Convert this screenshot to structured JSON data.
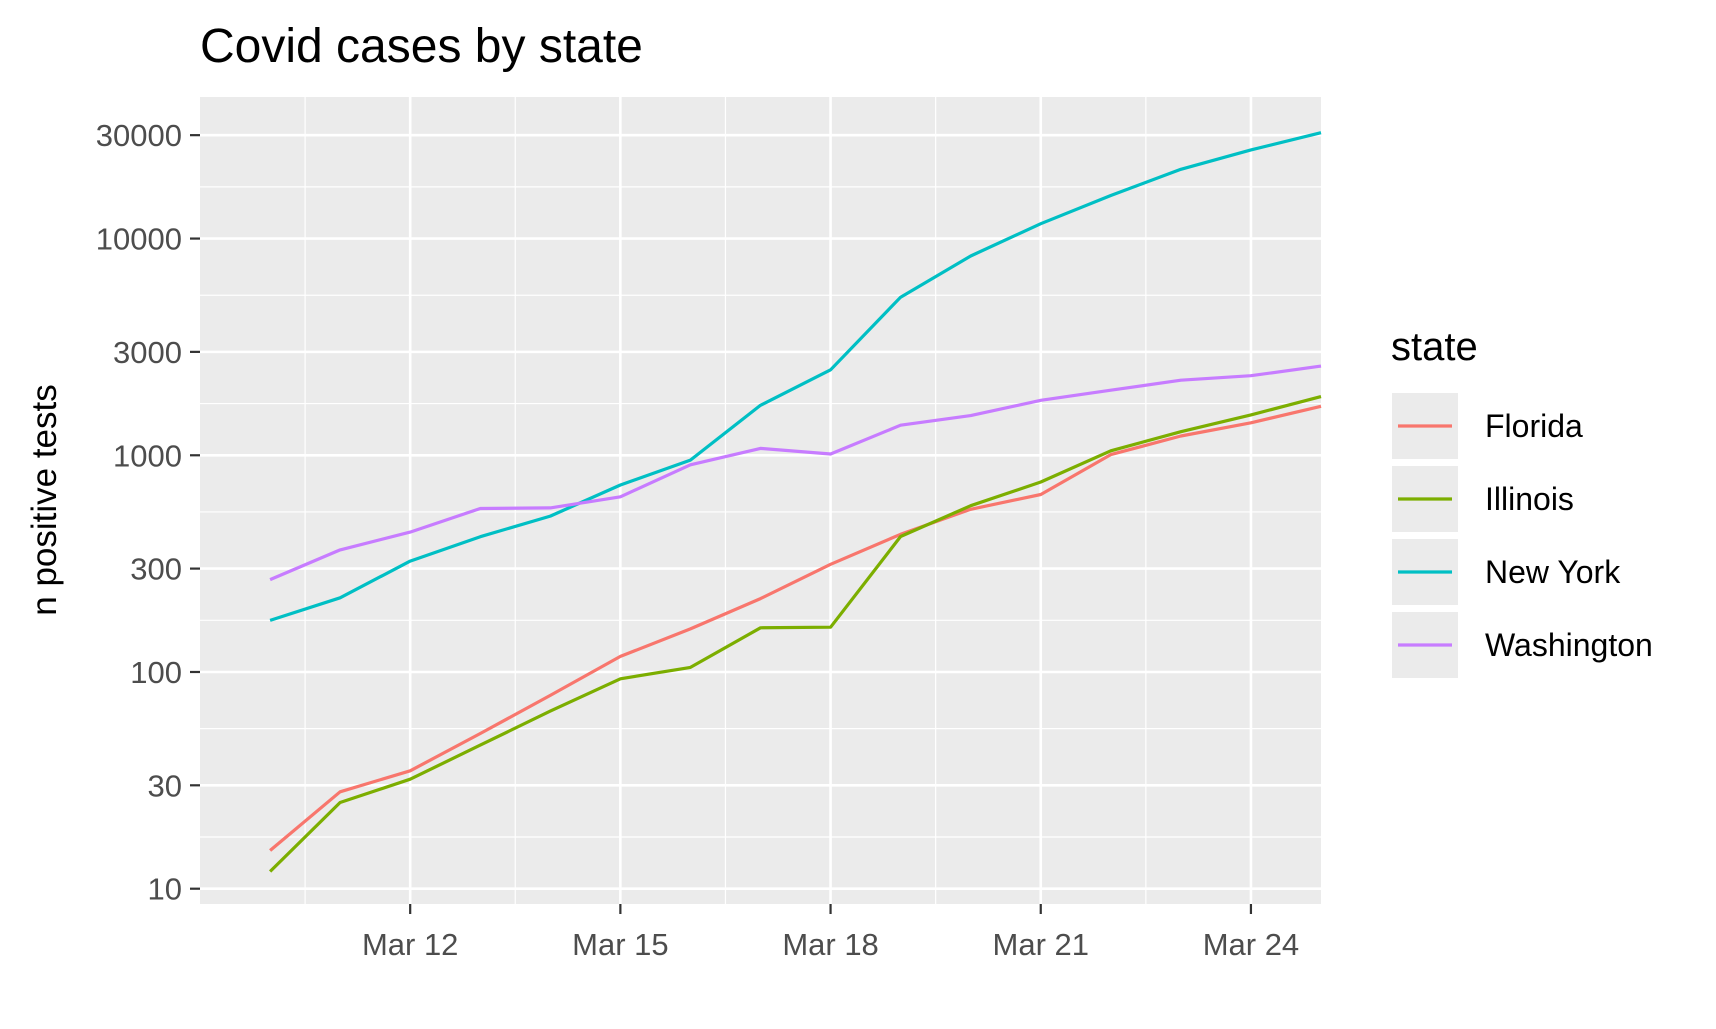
{
  "chart_data": {
    "type": "line",
    "title": "Covid cases by state",
    "xlabel": "",
    "ylabel": "n positive tests",
    "yscale": "log10",
    "ylim": [
      8.5,
      45000
    ],
    "xlim": [
      "2020-03-09",
      "2020-03-25"
    ],
    "x_ticks": [
      {
        "date": "2020-03-12",
        "label": "Mar 12"
      },
      {
        "date": "2020-03-15",
        "label": "Mar 15"
      },
      {
        "date": "2020-03-18",
        "label": "Mar 18"
      },
      {
        "date": "2020-03-21",
        "label": "Mar 21"
      },
      {
        "date": "2020-03-24",
        "label": "Mar 24"
      }
    ],
    "y_ticks": [
      {
        "value": 10,
        "label": "10"
      },
      {
        "value": 30,
        "label": "30"
      },
      {
        "value": 100,
        "label": "100"
      },
      {
        "value": 300,
        "label": "300"
      },
      {
        "value": 1000,
        "label": "1000"
      },
      {
        "value": 3000,
        "label": "3000"
      },
      {
        "value": 10000,
        "label": "10000"
      },
      {
        "value": 30000,
        "label": "30000"
      }
    ],
    "grid": true,
    "legend": {
      "title": "state",
      "position": "right"
    },
    "x": [
      "2020-03-10",
      "2020-03-11",
      "2020-03-12",
      "2020-03-13",
      "2020-03-14",
      "2020-03-15",
      "2020-03-16",
      "2020-03-17",
      "2020-03-18",
      "2020-03-19",
      "2020-03-20",
      "2020-03-21",
      "2020-03-22",
      "2020-03-23",
      "2020-03-24",
      "2020-03-25"
    ],
    "series": [
      {
        "name": "Florida",
        "color": "#F8766D",
        "values": [
          15,
          28,
          35,
          52,
          78,
          118,
          158,
          218,
          314,
          432,
          563,
          659,
          1007,
          1227,
          1412,
          1682
        ]
      },
      {
        "name": "Illinois",
        "color": "#7CAE00",
        "values": [
          12,
          25,
          32,
          46,
          66,
          93,
          105,
          160,
          161,
          422,
          585,
          753,
          1049,
          1285,
          1535,
          1865
        ]
      },
      {
        "name": "New York",
        "color": "#00BFC4",
        "values": [
          173,
          220,
          325,
          421,
          524,
          729,
          950,
          1700,
          2480,
          5365,
          8310,
          11710,
          15800,
          20875,
          25665,
          30811
        ]
      },
      {
        "name": "Washington",
        "color": "#C77CFF",
        "values": [
          267,
          366,
          442,
          568,
          572,
          643,
          904,
          1076,
          1014,
          1376,
          1524,
          1793,
          1996,
          2221,
          2328,
          2580
        ]
      }
    ]
  }
}
